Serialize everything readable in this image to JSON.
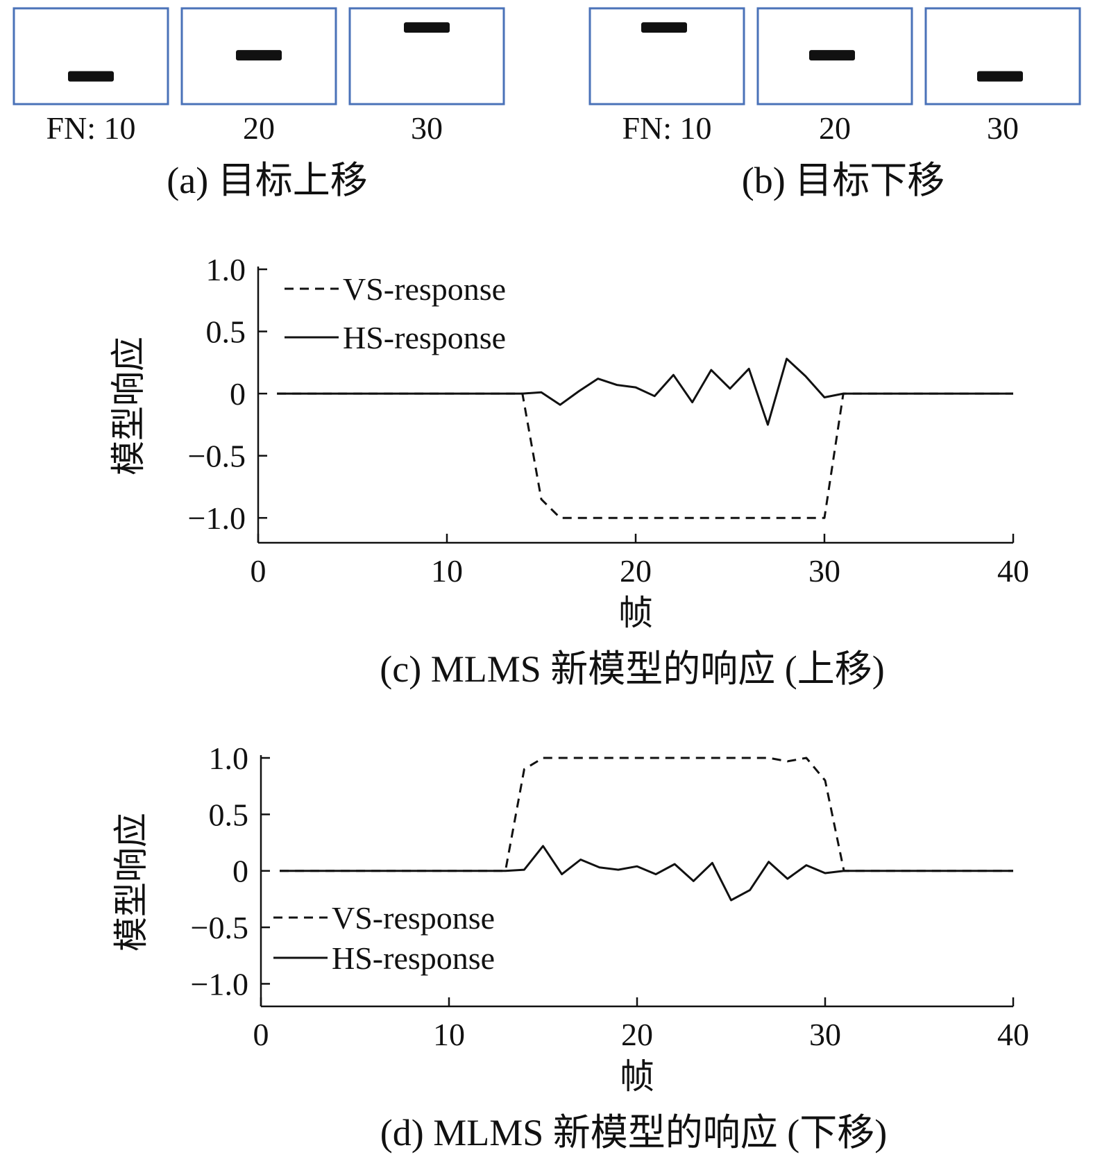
{
  "panels_top": [
    {
      "caption": "(a) 目标上移",
      "frames": [
        {
          "label": "FN: 10",
          "bar_level": 0.29
        },
        {
          "label": "20",
          "bar_level": 0.51
        },
        {
          "label": "30",
          "bar_level": 0.8
        }
      ]
    },
    {
      "caption": "(b) 目标下移",
      "frames": [
        {
          "label": "FN: 10",
          "bar_level": 0.8
        },
        {
          "label": "20",
          "bar_level": 0.51
        },
        {
          "label": "30",
          "bar_level": 0.29
        }
      ]
    }
  ],
  "colors": {
    "frame_border": "#4a72b8",
    "bar": "#111111",
    "line": "#111111"
  },
  "chart_data": [
    {
      "type": "line",
      "caption": "(c) MLMS 新模型的响应 (上移)",
      "xlabel": "帧",
      "ylabel": "模型响应",
      "xlim": [
        0,
        40
      ],
      "ylim": [
        -1.2,
        1.0
      ],
      "xticks": [
        0,
        10,
        20,
        30,
        40
      ],
      "xtick_labels": [
        "0",
        "10",
        "20",
        "30",
        "40"
      ],
      "yticks": [
        1.0,
        0.5,
        0,
        -0.5,
        -1.0
      ],
      "ytick_labels": [
        "1.0",
        "0.5",
        "0",
        "−0.5",
        "−1.0"
      ],
      "legend": "top-left",
      "grid": false,
      "series": [
        {
          "name": "VS-response",
          "style": "dashed",
          "x": [
            1,
            2,
            3,
            4,
            5,
            6,
            7,
            8,
            9,
            10,
            11,
            12,
            13,
            14,
            15,
            16,
            17,
            18,
            19,
            20,
            21,
            22,
            23,
            24,
            25,
            26,
            27,
            28,
            29,
            30,
            31,
            32,
            33,
            34,
            35,
            36,
            37,
            38,
            39,
            40
          ],
          "values": [
            0,
            0,
            0,
            0,
            0,
            0,
            0,
            0,
            0,
            0,
            0,
            0,
            0,
            0,
            -0.85,
            -1.0,
            -1.0,
            -1.0,
            -1.0,
            -1.0,
            -1.0,
            -1.0,
            -1.0,
            -1.0,
            -1.0,
            -1.0,
            -1.0,
            -1.0,
            -1.0,
            -1.0,
            0,
            0,
            0,
            0,
            0,
            0,
            0,
            0,
            0,
            0
          ]
        },
        {
          "name": "HS-response",
          "style": "solid",
          "x": [
            1,
            2,
            3,
            4,
            5,
            6,
            7,
            8,
            9,
            10,
            11,
            12,
            13,
            14,
            15,
            16,
            17,
            18,
            19,
            20,
            21,
            22,
            23,
            24,
            25,
            26,
            27,
            28,
            29,
            30,
            31,
            32,
            33,
            34,
            35,
            36,
            37,
            38,
            39,
            40
          ],
          "values": [
            0,
            0,
            0,
            0,
            0,
            0,
            0,
            0,
            0,
            0,
            0,
            0,
            0,
            0,
            0.01,
            -0.09,
            0.02,
            0.12,
            0.07,
            0.05,
            -0.02,
            0.15,
            -0.07,
            0.19,
            0.04,
            0.2,
            -0.25,
            0.28,
            0.14,
            -0.03,
            0,
            0,
            0,
            0,
            0,
            0,
            0,
            0,
            0,
            0
          ]
        }
      ]
    },
    {
      "type": "line",
      "caption": "(d) MLMS 新模型的响应 (下移)",
      "xlabel": "帧",
      "ylabel": "模型响应",
      "xlim": [
        0,
        40
      ],
      "ylim": [
        -1.2,
        1.0
      ],
      "xticks": [
        0,
        10,
        20,
        30,
        40
      ],
      "xtick_labels": [
        "0",
        "10",
        "20",
        "30",
        "40"
      ],
      "yticks": [
        1.0,
        0.5,
        0,
        -0.5,
        -1.0
      ],
      "ytick_labels": [
        "1.0",
        "0.5",
        "0",
        "−0.5",
        "−1.0"
      ],
      "legend": "lower-left",
      "grid": false,
      "series": [
        {
          "name": "VS-response",
          "style": "dashed",
          "x": [
            1,
            2,
            3,
            4,
            5,
            6,
            7,
            8,
            9,
            10,
            11,
            12,
            13,
            14,
            15,
            16,
            17,
            18,
            19,
            20,
            21,
            22,
            23,
            24,
            25,
            26,
            27,
            28,
            29,
            30,
            31,
            32,
            33,
            34,
            35,
            36,
            37,
            38,
            39,
            40
          ],
          "values": [
            0,
            0,
            0,
            0,
            0,
            0,
            0,
            0,
            0,
            0,
            0,
            0,
            0,
            0.9,
            1.0,
            1.0,
            1.0,
            1.0,
            1.0,
            1.0,
            1.0,
            1.0,
            1.0,
            1.0,
            1.0,
            1.0,
            1.0,
            0.97,
            1.0,
            0.8,
            0,
            0,
            0,
            0,
            0,
            0,
            0,
            0,
            0,
            0
          ]
        },
        {
          "name": "HS-response",
          "style": "solid",
          "x": [
            1,
            2,
            3,
            4,
            5,
            6,
            7,
            8,
            9,
            10,
            11,
            12,
            13,
            14,
            15,
            16,
            17,
            18,
            19,
            20,
            21,
            22,
            23,
            24,
            25,
            26,
            27,
            28,
            29,
            30,
            31,
            32,
            33,
            34,
            35,
            36,
            37,
            38,
            39,
            40
          ],
          "values": [
            0,
            0,
            0,
            0,
            0,
            0,
            0,
            0,
            0,
            0,
            0,
            0,
            0,
            0.01,
            0.22,
            -0.03,
            0.1,
            0.03,
            0.01,
            0.04,
            -0.03,
            0.06,
            -0.09,
            0.07,
            -0.26,
            -0.17,
            0.08,
            -0.07,
            0.05,
            -0.02,
            0,
            0,
            0,
            0,
            0,
            0,
            0,
            0,
            0,
            0
          ]
        }
      ]
    }
  ]
}
